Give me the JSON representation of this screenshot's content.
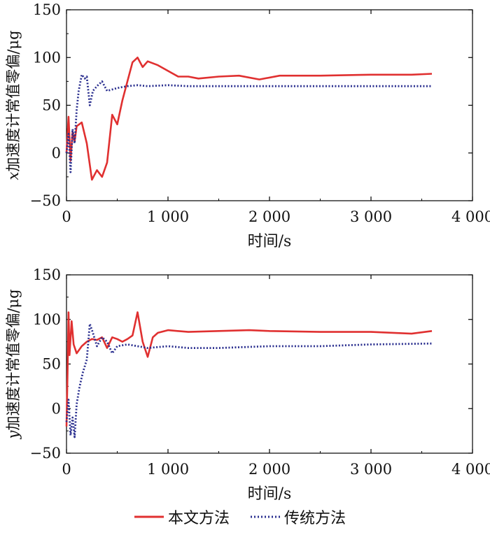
{
  "colors": {
    "method_ours": "#e03030",
    "method_traditional": "#2a2f8f",
    "axis": "#000000"
  },
  "legend": {
    "ours": "本文方法",
    "traditional": "传统方法"
  },
  "chart_data": [
    {
      "type": "line",
      "id": "x",
      "xlabel": "时间/s",
      "ylabel_var": "x",
      "ylabel_text": "加速度计常值零偏/μg",
      "xlim": [
        0,
        4000
      ],
      "ylim": [
        -50,
        150
      ],
      "xticks": [
        0,
        1000,
        2000,
        3000,
        4000
      ],
      "xtick_labels": [
        "0",
        "1 000",
        "2 000",
        "3 000",
        "4 000"
      ],
      "yticks": [
        -50,
        0,
        50,
        100,
        150
      ],
      "ytick_labels": [
        "−50",
        "0",
        "50",
        "100",
        "150"
      ],
      "series": [
        {
          "name": "本文方法",
          "style": "solid",
          "x": [
            0,
            20,
            40,
            60,
            80,
            100,
            150,
            200,
            250,
            300,
            350,
            400,
            450,
            500,
            550,
            600,
            650,
            700,
            750,
            800,
            900,
            1000,
            1100,
            1200,
            1300,
            1500,
            1700,
            1900,
            2100,
            2500,
            3000,
            3400,
            3600
          ],
          "y": [
            0,
            38,
            -8,
            22,
            12,
            28,
            32,
            10,
            -28,
            -18,
            -25,
            -10,
            40,
            30,
            55,
            75,
            95,
            100,
            90,
            96,
            92,
            86,
            80,
            80,
            78,
            80,
            81,
            77,
            81,
            81,
            82,
            82,
            83
          ]
        },
        {
          "name": "传统方法",
          "style": "dotted",
          "x": [
            0,
            20,
            40,
            60,
            80,
            100,
            120,
            150,
            180,
            200,
            230,
            260,
            300,
            350,
            400,
            500,
            600,
            700,
            800,
            1000,
            1200,
            1500,
            2000,
            2500,
            3000,
            3600
          ],
          "y": [
            0,
            20,
            -20,
            25,
            10,
            45,
            65,
            82,
            78,
            80,
            50,
            65,
            70,
            75,
            65,
            68,
            70,
            71,
            70,
            71,
            70,
            70,
            70,
            70,
            70,
            70
          ]
        }
      ]
    },
    {
      "type": "line",
      "id": "y",
      "xlabel": "时间/s",
      "ylabel_var": "y",
      "ylabel_text": "加速度计常值零偏/μg",
      "xlim": [
        0,
        4000
      ],
      "ylim": [
        -50,
        150
      ],
      "xticks": [
        0,
        1000,
        2000,
        3000,
        4000
      ],
      "xtick_labels": [
        "0",
        "1 000",
        "2 000",
        "3 000",
        "4 000"
      ],
      "yticks": [
        -50,
        0,
        50,
        100,
        150
      ],
      "ytick_labels": [
        "−50",
        "0",
        "50",
        "100",
        "150"
      ],
      "series": [
        {
          "name": "本文方法",
          "style": "solid",
          "x": [
            0,
            10,
            20,
            30,
            50,
            70,
            100,
            150,
            200,
            250,
            300,
            350,
            400,
            450,
            500,
            550,
            600,
            650,
            700,
            750,
            800,
            850,
            900,
            1000,
            1200,
            1500,
            1800,
            2000,
            2500,
            3000,
            3400,
            3600
          ],
          "y": [
            -20,
            40,
            108,
            60,
            98,
            72,
            62,
            70,
            75,
            78,
            77,
            80,
            68,
            80,
            78,
            75,
            78,
            82,
            108,
            75,
            58,
            80,
            85,
            88,
            86,
            87,
            88,
            87,
            86,
            86,
            84,
            87
          ]
        },
        {
          "name": "传统方法",
          "style": "dotted",
          "x": [
            0,
            20,
            40,
            60,
            80,
            100,
            130,
            160,
            200,
            230,
            260,
            300,
            350,
            400,
            450,
            500,
            600,
            700,
            800,
            1000,
            1200,
            1500,
            2000,
            2500,
            3000,
            3600
          ],
          "y": [
            -15,
            10,
            -30,
            -10,
            -32,
            5,
            25,
            40,
            55,
            95,
            85,
            70,
            80,
            75,
            62,
            70,
            72,
            70,
            68,
            70,
            68,
            68,
            70,
            70,
            72,
            73
          ]
        }
      ]
    }
  ]
}
